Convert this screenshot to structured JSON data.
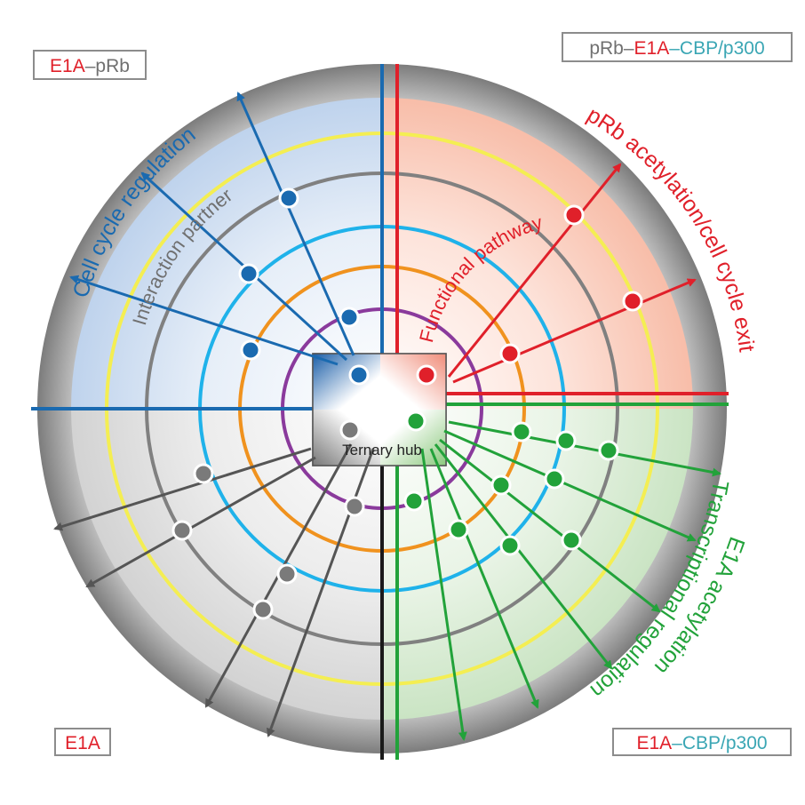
{
  "colors": {
    "red": "#e0202a",
    "blue": "#1a6ab0",
    "green": "#22a23a",
    "teal": "#3aa6b4",
    "grey": "#707070",
    "yellow": "#f4ee52",
    "cyan": "#1fb2ea",
    "orange": "#f0921e",
    "purple": "#8a3a9c"
  },
  "corner_labels": {
    "top_left": [
      {
        "text": "E1A",
        "color": "red"
      },
      {
        "text": "–pRb",
        "color": "grey"
      }
    ],
    "top_right": [
      {
        "text": "pRb–",
        "color": "grey"
      },
      {
        "text": "E1A",
        "color": "red"
      },
      {
        "text": "–CBP/p300",
        "color": "teal"
      }
    ],
    "bottom_left": [
      {
        "text": "E1A",
        "color": "red"
      }
    ],
    "bottom_right": [
      {
        "text": "E1A",
        "color": "red"
      },
      {
        "text": "–CBP/p300",
        "color": "teal"
      }
    ]
  },
  "quadrant_titles": {
    "blue": "Cell cycle regulation",
    "red": "pRb acetylation/cell cycle exit",
    "green_line1": "E1A acetylation",
    "green_line2": "Transcriptional regulation"
  },
  "ring_titles": {
    "grey": "Interaction partner",
    "red": "Functional pathway"
  },
  "hub": {
    "label": "Ternary hub"
  }
}
